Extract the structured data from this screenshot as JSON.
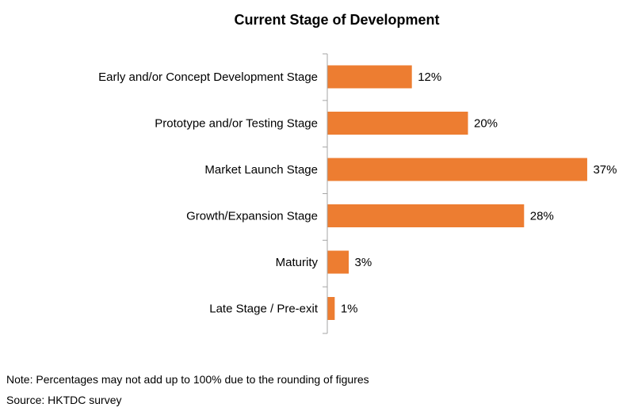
{
  "chart_data": {
    "type": "bar",
    "orientation": "horizontal",
    "title": "Current  Stage of Development",
    "categories": [
      "Early and/or Concept Development Stage",
      "Prototype and/or Testing Stage",
      "Market Launch Stage",
      "Growth/Expansion Stage",
      "Maturity",
      "Late Stage / Pre-exit"
    ],
    "values": [
      12,
      20,
      37,
      28,
      3,
      1
    ],
    "value_labels": [
      "12%",
      "20%",
      "37%",
      "28%",
      "3%",
      "1%"
    ],
    "unit": "%",
    "xlim": [
      0,
      40
    ],
    "xlabel": "",
    "ylabel": "",
    "grid": false,
    "legend": "none",
    "bar_color": "#ED7D31",
    "axis_color": "#A6A6A6"
  },
  "footnotes": {
    "note": "Note: Percentages may not add up to 100% due to the rounding of figures",
    "source": "Source: HKTDC survey"
  }
}
